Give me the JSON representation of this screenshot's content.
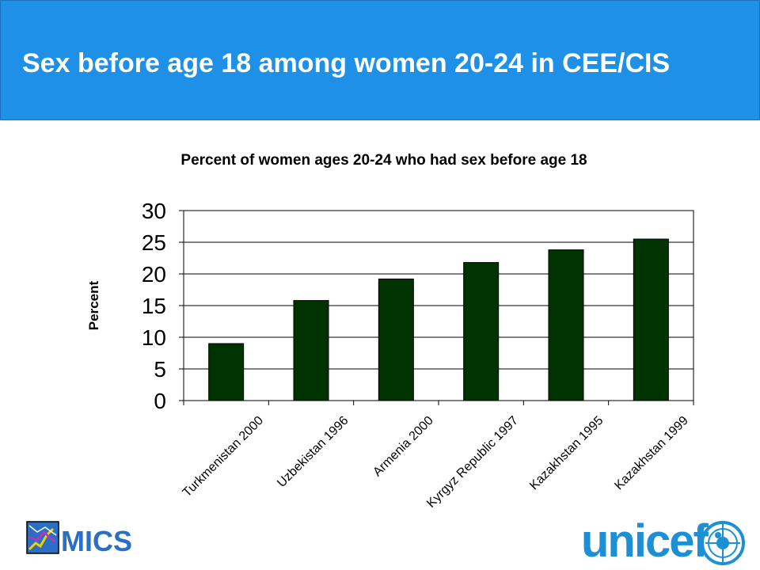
{
  "slide": {
    "title": "Sex before age 18 among women 20-24 in CEE/CIS"
  },
  "logos": {
    "mics_label": "MICS",
    "unicef_label": "unicef",
    "mics_icon": "mics-chart-icon",
    "un_icon": "un-emblem-icon"
  },
  "colors": {
    "header": "#1e90e8",
    "bar": "#003300",
    "brand": "#1d8fd4"
  },
  "chart_data": {
    "type": "bar",
    "title": "Percent of women ages 20-24 who had sex before age 18",
    "ylabel": "Percent",
    "xlabel": "",
    "categories": [
      "Turkmenistan 2000",
      "Uzbekistan 1996",
      "Armenia 2000",
      "Kyrgyz Republic 1997",
      "Kazakhstan 1995",
      "Kazakhstan 1999"
    ],
    "values": [
      9,
      15.8,
      19.2,
      21.8,
      23.8,
      25.5
    ],
    "ylim": [
      0,
      30
    ],
    "yticks": [
      "0",
      "5",
      "10",
      "15",
      "20",
      "25",
      "30"
    ],
    "grid": true,
    "legend": "none"
  }
}
